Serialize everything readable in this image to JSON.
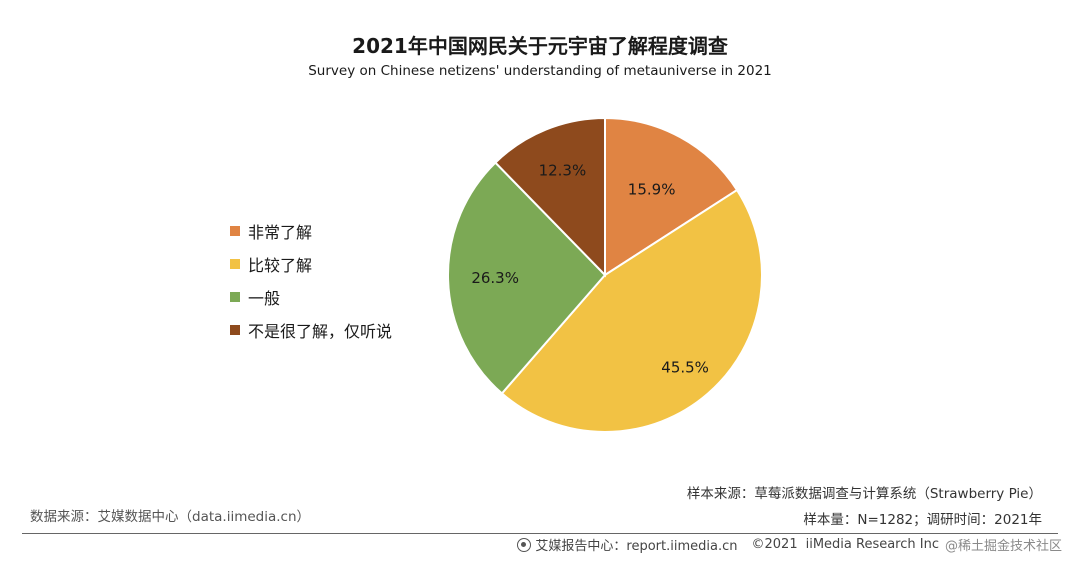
{
  "header": {
    "title": "2021年中国网民关于元宇宙了解程度调查",
    "subtitle": "Survey on Chinese netizens' understanding of metauniverse in 2021"
  },
  "chart_data": {
    "type": "pie",
    "title": "2021年中国网民关于元宇宙了解程度调查",
    "subtitle": "Survey on Chinese netizens' understanding of metauniverse in 2021",
    "categories": [
      "非常了解",
      "比较了解",
      "一般",
      "不是很了解，仅听说"
    ],
    "values": [
      15.9,
      45.5,
      26.3,
      12.3
    ],
    "value_labels": [
      "15.9%",
      "45.5%",
      "26.3%",
      "12.3%"
    ],
    "colors": [
      "#E08443",
      "#F2C244",
      "#7CA955",
      "#8E4A1D"
    ],
    "start": "12 o'clock, clockwise",
    "legend_position": "left"
  },
  "sources": {
    "sample_source": "样本来源：草莓派数据调查与计算系统（Strawberry Pie）",
    "sample_size": "样本量：N=1282；调研时间：2021年",
    "data_source": "数据来源：艾媒数据中心（data.iimedia.cn）"
  },
  "footer": {
    "icon": "iimedia-logo-icon",
    "report": "艾媒报告中心：report.iimedia.cn",
    "copyright": "©2021",
    "org": "iiMedia Research Inc",
    "watermark": "@稀土掘金技术社区"
  }
}
